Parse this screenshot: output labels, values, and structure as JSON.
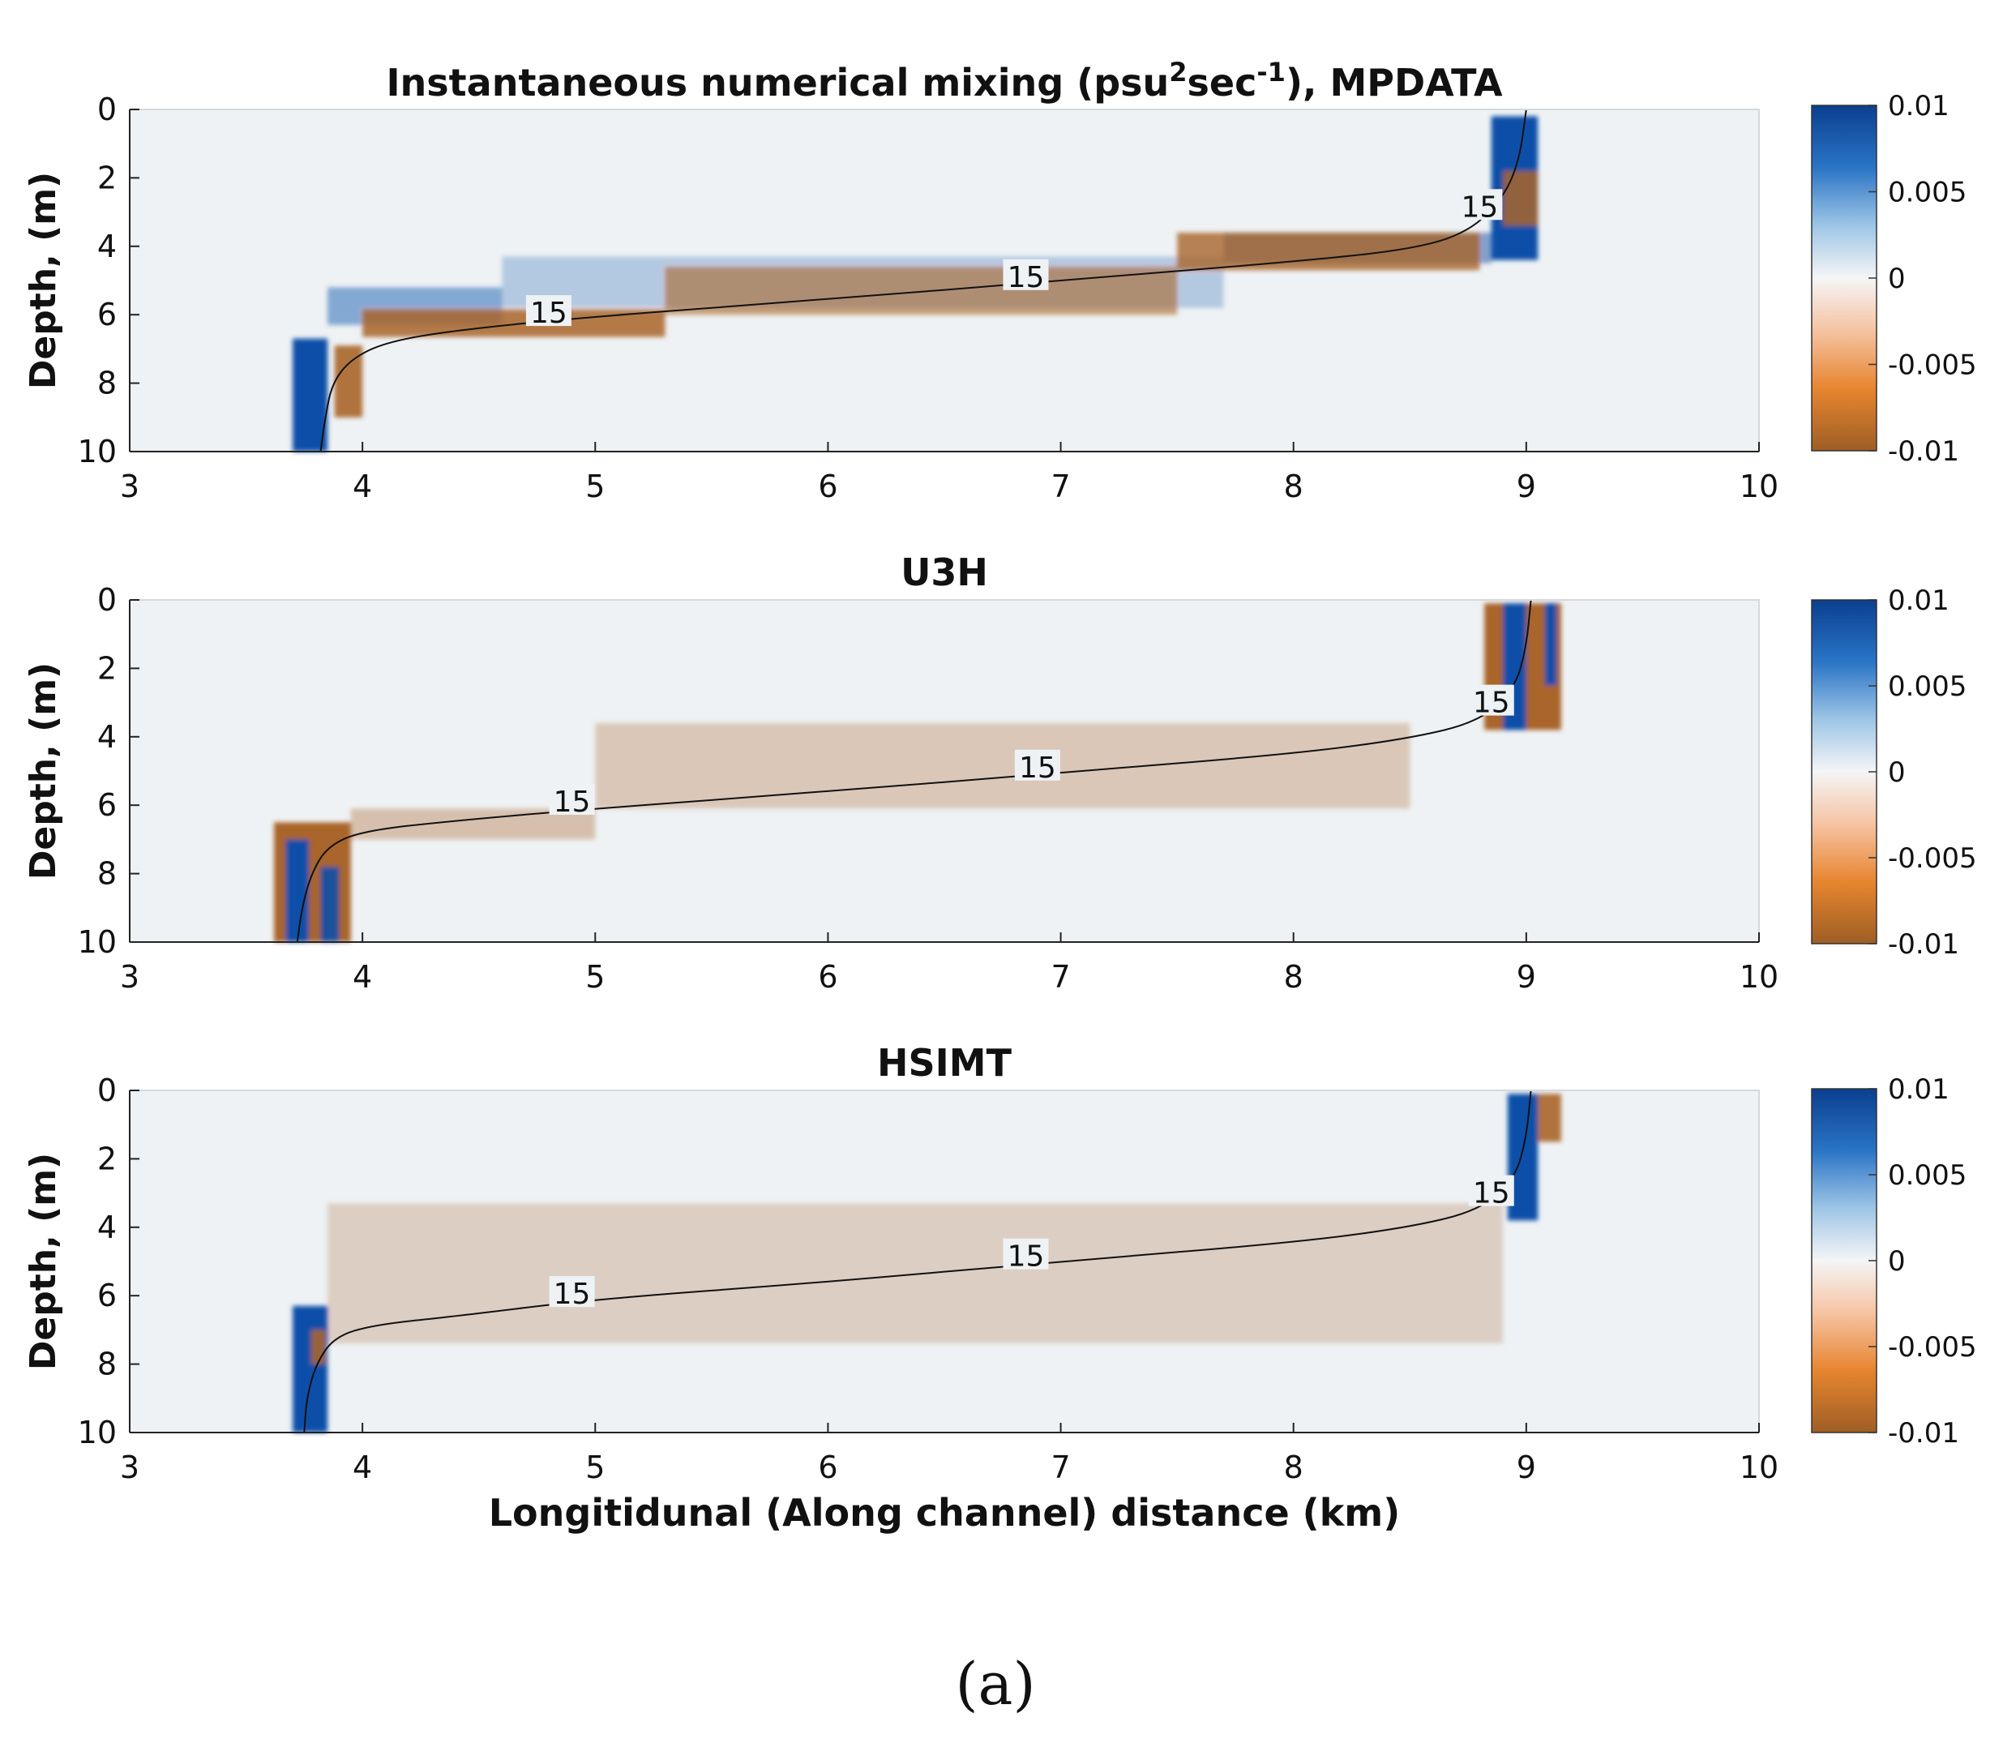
{
  "chart_data": [
    {
      "type": "heatmap",
      "title": "Instantaneous numerical mixing (psu",
      "title_sup_1": "2",
      "title_mid": "sec",
      "title_sup_2": "-1",
      "title_end": "), MPDATA",
      "ylabel": "Depth, (m)",
      "xlabel": "",
      "xlim": [
        3,
        10
      ],
      "ylim": [
        0,
        10
      ],
      "xticks": [
        "3",
        "4",
        "5",
        "6",
        "7",
        "8",
        "9",
        "10"
      ],
      "yticks": [
        "0",
        "2",
        "4",
        "6",
        "8",
        "10"
      ],
      "colorbar": {
        "ticks": [
          "0.01",
          "0.005",
          "0",
          "-0.005",
          "-0.01"
        ],
        "range": [
          -0.01,
          0.01
        ]
      },
      "contour": {
        "level": 15,
        "label_text": "15",
        "path": [
          [
            3.82,
            10
          ],
          [
            3.84,
            9
          ],
          [
            3.87,
            8.0
          ],
          [
            3.95,
            7.3
          ],
          [
            4.1,
            6.8
          ],
          [
            4.4,
            6.45
          ],
          [
            5.0,
            6.05
          ],
          [
            6.0,
            5.55
          ],
          [
            7.0,
            5.0
          ],
          [
            8.0,
            4.45
          ],
          [
            8.5,
            4.1
          ],
          [
            8.75,
            3.6
          ],
          [
            8.9,
            2.6
          ],
          [
            8.97,
            1.5
          ],
          [
            9.0,
            0
          ]
        ],
        "labels": [
          [
            4.8,
            5.95
          ],
          [
            6.85,
            4.9
          ],
          [
            8.8,
            2.85
          ]
        ]
      },
      "features": [
        {
          "kind": "positive",
          "intensity": 1.0,
          "x": [
            3.7,
            3.85
          ],
          "y": [
            6.7,
            10
          ]
        },
        {
          "kind": "positive",
          "intensity": 0.45,
          "x": [
            3.85,
            4.6
          ],
          "y": [
            5.2,
            6.3
          ]
        },
        {
          "kind": "positive",
          "intensity": 0.25,
          "x": [
            4.6,
            7.7
          ],
          "y": [
            4.3,
            5.8
          ]
        },
        {
          "kind": "positive",
          "intensity": 0.5,
          "x": [
            7.7,
            8.85
          ],
          "y": [
            3.6,
            4.5
          ]
        },
        {
          "kind": "positive",
          "intensity": 1.0,
          "x": [
            8.85,
            9.05
          ],
          "y": [
            0.2,
            4.4
          ]
        },
        {
          "kind": "negative",
          "intensity": 0.9,
          "x": [
            3.88,
            4.0
          ],
          "y": [
            6.9,
            9.0
          ]
        },
        {
          "kind": "negative",
          "intensity": 0.85,
          "x": [
            4.0,
            5.3
          ],
          "y": [
            5.85,
            6.65
          ]
        },
        {
          "kind": "negative",
          "intensity": 0.6,
          "x": [
            5.3,
            7.5
          ],
          "y": [
            4.6,
            6.0
          ]
        },
        {
          "kind": "negative",
          "intensity": 0.8,
          "x": [
            7.5,
            8.8
          ],
          "y": [
            3.6,
            4.7
          ]
        },
        {
          "kind": "negative",
          "intensity": 0.85,
          "x": [
            8.9,
            9.05
          ],
          "y": [
            1.8,
            3.4
          ]
        }
      ]
    },
    {
      "type": "heatmap",
      "title": "U3H",
      "ylabel": "Depth, (m)",
      "xlabel": "",
      "xlim": [
        3,
        10
      ],
      "ylim": [
        0,
        10
      ],
      "xticks": [
        "3",
        "4",
        "5",
        "6",
        "7",
        "8",
        "9",
        "10"
      ],
      "yticks": [
        "0",
        "2",
        "4",
        "6",
        "8",
        "10"
      ],
      "colorbar": {
        "ticks": [
          "0.01",
          "0.005",
          "0",
          "-0.005",
          "-0.01"
        ],
        "range": [
          -0.01,
          0.01
        ]
      },
      "contour": {
        "level": 15,
        "label_text": "15",
        "path": [
          [
            3.72,
            10
          ],
          [
            3.74,
            9
          ],
          [
            3.78,
            8.0
          ],
          [
            3.85,
            7.2
          ],
          [
            4.0,
            6.75
          ],
          [
            4.4,
            6.45
          ],
          [
            5.0,
            6.1
          ],
          [
            6.0,
            5.6
          ],
          [
            7.0,
            5.05
          ],
          [
            8.0,
            4.5
          ],
          [
            8.5,
            4.05
          ],
          [
            8.8,
            3.55
          ],
          [
            8.95,
            2.6
          ],
          [
            9.0,
            1.4
          ],
          [
            9.02,
            0
          ]
        ],
        "labels": [
          [
            4.9,
            5.9
          ],
          [
            6.9,
            4.9
          ],
          [
            8.85,
            3.0
          ]
        ]
      },
      "features": [
        {
          "kind": "negative",
          "intensity": 1.0,
          "x": [
            3.62,
            3.95
          ],
          "y": [
            6.5,
            10
          ]
        },
        {
          "kind": "positive",
          "intensity": 1.0,
          "x": [
            3.67,
            3.77
          ],
          "y": [
            7.0,
            10
          ]
        },
        {
          "kind": "positive",
          "intensity": 0.9,
          "x": [
            3.82,
            3.9
          ],
          "y": [
            7.8,
            10
          ]
        },
        {
          "kind": "negative",
          "intensity": 0.35,
          "x": [
            3.95,
            5.0
          ],
          "y": [
            6.1,
            7.0
          ]
        },
        {
          "kind": "negative",
          "intensity": 0.3,
          "x": [
            5.0,
            8.5
          ],
          "y": [
            3.6,
            6.1
          ]
        },
        {
          "kind": "negative",
          "intensity": 1.0,
          "x": [
            8.82,
            9.15
          ],
          "y": [
            0.1,
            3.8
          ]
        },
        {
          "kind": "positive",
          "intensity": 1.0,
          "x": [
            8.9,
            9.0
          ],
          "y": [
            0.1,
            3.8
          ]
        },
        {
          "kind": "positive",
          "intensity": 1.0,
          "x": [
            9.08,
            9.13
          ],
          "y": [
            0.1,
            2.5
          ]
        }
      ]
    },
    {
      "type": "heatmap",
      "title": "HSIMT",
      "ylabel": "Depth, (m)",
      "xlabel": "Longitidunal (Along channel) distance (km)",
      "xlim": [
        3,
        10
      ],
      "ylim": [
        0,
        10
      ],
      "xticks": [
        "3",
        "4",
        "5",
        "6",
        "7",
        "8",
        "9",
        "10"
      ],
      "yticks": [
        "0",
        "2",
        "4",
        "6",
        "8",
        "10"
      ],
      "colorbar": {
        "ticks": [
          "0.01",
          "0.005",
          "0",
          "-0.005",
          "-0.01"
        ],
        "range": [
          -0.01,
          0.01
        ]
      },
      "contour": {
        "level": 15,
        "label_text": "15",
        "path": [
          [
            3.75,
            10
          ],
          [
            3.76,
            9
          ],
          [
            3.8,
            8.0
          ],
          [
            3.88,
            7.2
          ],
          [
            4.05,
            6.85
          ],
          [
            4.4,
            6.6
          ],
          [
            5.0,
            6.1
          ],
          [
            6.0,
            5.6
          ],
          [
            7.0,
            5.0
          ],
          [
            8.0,
            4.45
          ],
          [
            8.5,
            4.0
          ],
          [
            8.8,
            3.5
          ],
          [
            8.95,
            2.6
          ],
          [
            9.0,
            1.4
          ],
          [
            9.02,
            0
          ]
        ],
        "labels": [
          [
            4.9,
            5.95
          ],
          [
            6.85,
            4.85
          ],
          [
            8.85,
            3.0
          ]
        ]
      },
      "features": [
        {
          "kind": "positive",
          "intensity": 1.0,
          "x": [
            3.7,
            3.85
          ],
          "y": [
            6.3,
            10
          ]
        },
        {
          "kind": "negative",
          "intensity": 0.9,
          "x": [
            3.78,
            3.84
          ],
          "y": [
            7.0,
            8.0
          ]
        },
        {
          "kind": "negative",
          "intensity": 0.25,
          "x": [
            3.85,
            8.9
          ],
          "y": [
            3.3,
            7.4
          ]
        },
        {
          "kind": "positive",
          "intensity": 1.0,
          "x": [
            8.92,
            9.05
          ],
          "y": [
            0.1,
            3.8
          ]
        },
        {
          "kind": "negative",
          "intensity": 0.9,
          "x": [
            9.05,
            9.15
          ],
          "y": [
            0.1,
            1.5
          ]
        }
      ]
    }
  ],
  "caption": "(a)",
  "colors": {
    "background_field": "#eef2f4",
    "positive": "#0d4fa8",
    "negative": "#a9652a",
    "contour": "#111111",
    "axis": "#222222"
  }
}
